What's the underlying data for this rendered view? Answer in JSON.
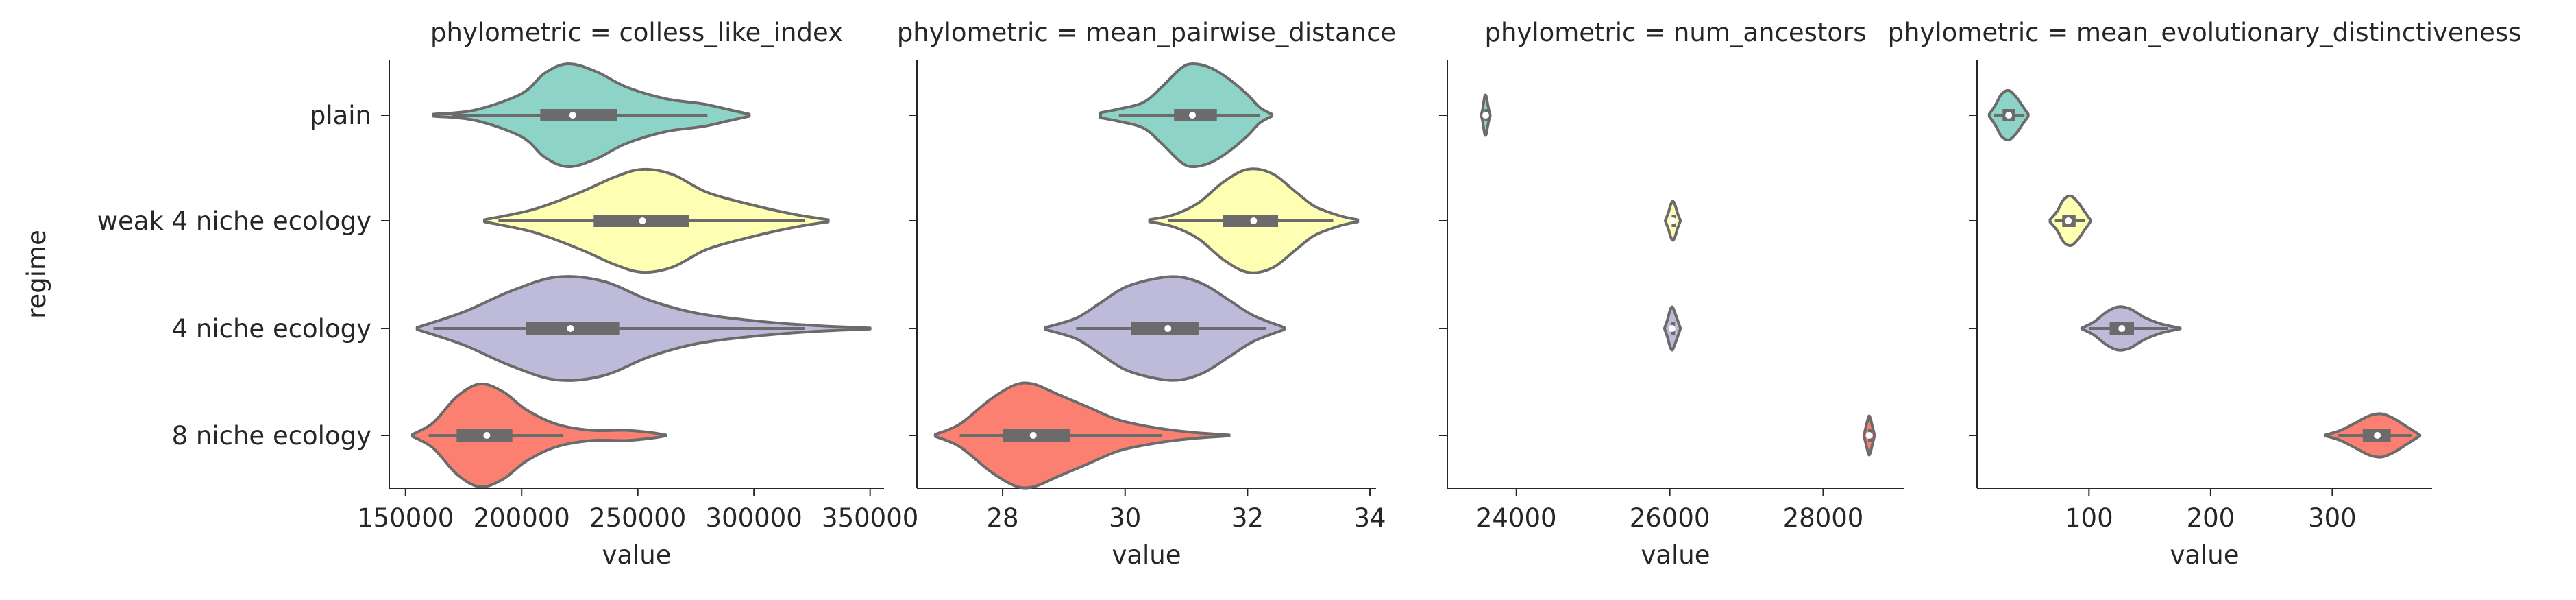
{
  "chart_data": {
    "type": "violin",
    "y_label": "regime",
    "categories": [
      "plain",
      "weak 4 niche ecology",
      "4 niche ecology",
      "8 niche ecology"
    ],
    "colors": [
      "#8dd3c7",
      "#ffffb3",
      "#bebada",
      "#fb8072"
    ],
    "outline_color": "#6b6b6b",
    "panels": [
      {
        "title": "phylometric = colless_like_index",
        "xlabel": "value",
        "xlim": [
          143000,
          356000
        ],
        "ticks": [
          150000,
          200000,
          250000,
          300000,
          350000
        ],
        "violins": [
          {
            "min": 162000,
            "max": 298000,
            "q1": 208000,
            "median": 222000,
            "q3": 241000,
            "wl": 170000,
            "wh": 280000,
            "profile": [
              [
                162000,
                0.02
              ],
              [
                180000,
                0.1
              ],
              [
                200000,
                0.42
              ],
              [
                210000,
                0.82
              ],
              [
                220000,
                1.0
              ],
              [
                232000,
                0.85
              ],
              [
                245000,
                0.55
              ],
              [
                262000,
                0.32
              ],
              [
                278000,
                0.22
              ],
              [
                290000,
                0.1
              ],
              [
                298000,
                0.02
              ]
            ]
          },
          {
            "min": 184000,
            "max": 332000,
            "q1": 231000,
            "median": 252000,
            "q3": 272000,
            "wl": 190000,
            "wh": 322000,
            "profile": [
              [
                184000,
                0.02
              ],
              [
                205000,
                0.22
              ],
              [
                225000,
                0.55
              ],
              [
                240000,
                0.85
              ],
              [
                252000,
                1.0
              ],
              [
                265000,
                0.9
              ],
              [
                280000,
                0.55
              ],
              [
                300000,
                0.3
              ],
              [
                318000,
                0.12
              ],
              [
                332000,
                0.02
              ]
            ]
          },
          {
            "min": 155000,
            "max": 350000,
            "q1": 202000,
            "median": 221000,
            "q3": 242000,
            "wl": 162000,
            "wh": 322000,
            "profile": [
              [
                155000,
                0.02
              ],
              [
                175000,
                0.32
              ],
              [
                195000,
                0.72
              ],
              [
                215000,
                1.0
              ],
              [
                235000,
                0.92
              ],
              [
                255000,
                0.55
              ],
              [
                275000,
                0.3
              ],
              [
                300000,
                0.15
              ],
              [
                325000,
                0.06
              ],
              [
                350000,
                0.01
              ]
            ]
          },
          {
            "min": 153000,
            "max": 262000,
            "q1": 172000,
            "median": 185000,
            "q3": 196000,
            "wl": 160000,
            "wh": 218000,
            "profile": [
              [
                153000,
                0.02
              ],
              [
                162000,
                0.25
              ],
              [
                172000,
                0.75
              ],
              [
                182000,
                1.0
              ],
              [
                192000,
                0.85
              ],
              [
                202000,
                0.5
              ],
              [
                215000,
                0.22
              ],
              [
                230000,
                0.1
              ],
              [
                245000,
                0.1
              ],
              [
                255000,
                0.06
              ],
              [
                262000,
                0.01
              ]
            ]
          }
        ]
      },
      {
        "title": "phylometric = mean_pairwise_distance",
        "xlabel": "value",
        "xlim": [
          26.6,
          34.1
        ],
        "ticks": [
          28,
          30,
          32,
          34
        ],
        "violins": [
          {
            "min": 29.6,
            "max": 32.4,
            "q1": 30.8,
            "median": 31.1,
            "q3": 31.5,
            "wl": 29.9,
            "wh": 32.2,
            "profile": [
              [
                29.6,
                0.05
              ],
              [
                29.9,
                0.12
              ],
              [
                30.3,
                0.25
              ],
              [
                30.6,
                0.55
              ],
              [
                30.9,
                0.9
              ],
              [
                31.1,
                1.0
              ],
              [
                31.4,
                0.92
              ],
              [
                31.7,
                0.7
              ],
              [
                32.0,
                0.4
              ],
              [
                32.2,
                0.15
              ],
              [
                32.4,
                0.02
              ]
            ]
          },
          {
            "min": 30.4,
            "max": 33.8,
            "q1": 31.6,
            "median": 32.1,
            "q3": 32.5,
            "wl": 30.7,
            "wh": 33.4,
            "profile": [
              [
                30.4,
                0.02
              ],
              [
                30.8,
                0.12
              ],
              [
                31.2,
                0.35
              ],
              [
                31.6,
                0.75
              ],
              [
                32.0,
                1.0
              ],
              [
                32.4,
                0.92
              ],
              [
                32.8,
                0.55
              ],
              [
                33.1,
                0.28
              ],
              [
                33.5,
                0.1
              ],
              [
                33.8,
                0.02
              ]
            ]
          },
          {
            "min": 28.7,
            "max": 32.6,
            "q1": 30.1,
            "median": 30.7,
            "q3": 31.2,
            "wl": 29.2,
            "wh": 32.3,
            "profile": [
              [
                28.7,
                0.02
              ],
              [
                29.2,
                0.2
              ],
              [
                29.6,
                0.5
              ],
              [
                30.0,
                0.8
              ],
              [
                30.5,
                0.97
              ],
              [
                30.9,
                1.0
              ],
              [
                31.3,
                0.85
              ],
              [
                31.7,
                0.55
              ],
              [
                32.1,
                0.25
              ],
              [
                32.6,
                0.02
              ]
            ]
          },
          {
            "min": 26.9,
            "max": 31.7,
            "q1": 28.0,
            "median": 28.5,
            "q3": 29.1,
            "wl": 27.3,
            "wh": 30.6,
            "profile": [
              [
                26.9,
                0.02
              ],
              [
                27.3,
                0.22
              ],
              [
                27.8,
                0.7
              ],
              [
                28.2,
                0.98
              ],
              [
                28.5,
                1.0
              ],
              [
                28.9,
                0.8
              ],
              [
                29.4,
                0.55
              ],
              [
                29.9,
                0.3
              ],
              [
                30.5,
                0.15
              ],
              [
                31.1,
                0.06
              ],
              [
                31.7,
                0.01
              ]
            ]
          }
        ]
      },
      {
        "title": "phylometric = num_ancestors",
        "xlabel": "value",
        "xlim": [
          23100,
          29050
        ],
        "ticks": [
          24000,
          26000,
          28000
        ],
        "violins": [
          {
            "min": 23560,
            "max": 23640,
            "q1": 23585,
            "median": 23600,
            "q3": 23615,
            "wl": 23565,
            "wh": 23635,
            "max_width_frac": 0.38,
            "profile": [
              [
                23540,
                0.0
              ],
              [
                23560,
                0.3
              ],
              [
                23575,
                0.7
              ],
              [
                23590,
                1.0
              ],
              [
                23605,
                1.0
              ],
              [
                23620,
                0.7
              ],
              [
                23640,
                0.3
              ],
              [
                23660,
                0.0
              ]
            ]
          },
          {
            "min": 26010,
            "max": 26070,
            "q1": 26025,
            "median": 26040,
            "q3": 26055,
            "wl": 26015,
            "wh": 26065,
            "max_width_frac": 0.38,
            "profile": [
              [
                25940,
                0.0
              ],
              [
                25980,
                0.4
              ],
              [
                26010,
                0.8
              ],
              [
                26040,
                1.0
              ],
              [
                26070,
                0.8
              ],
              [
                26100,
                0.4
              ],
              [
                26140,
                0.0
              ]
            ]
          },
          {
            "min": 25980,
            "max": 26100,
            "q1": 26015,
            "median": 26030,
            "q3": 26050,
            "wl": 25990,
            "wh": 26080,
            "max_width_frac": 0.42,
            "profile": [
              [
                25930,
                0.0
              ],
              [
                25970,
                0.4
              ],
              [
                26000,
                0.8
              ],
              [
                26030,
                1.0
              ],
              [
                26060,
                0.8
              ],
              [
                26100,
                0.4
              ],
              [
                26140,
                0.0
              ]
            ]
          },
          {
            "min": 28560,
            "max": 28640,
            "q1": 28585,
            "median": 28600,
            "q3": 28615,
            "wl": 28565,
            "wh": 28635,
            "max_width_frac": 0.38,
            "profile": [
              [
                28530,
                0.0
              ],
              [
                28555,
                0.4
              ],
              [
                28580,
                0.8
              ],
              [
                28600,
                1.0
              ],
              [
                28620,
                0.8
              ],
              [
                28645,
                0.4
              ],
              [
                28670,
                0.0
              ]
            ]
          }
        ]
      },
      {
        "title": "phylometric = mean_evolutionary_distinctiveness",
        "xlabel": "value",
        "xlim": [
          8,
          382
        ],
        "ticks": [
          100,
          200,
          300
        ],
        "violins": [
          {
            "min": 20,
            "max": 50,
            "q1": 29,
            "median": 34,
            "q3": 39,
            "wl": 22,
            "wh": 47,
            "max_width_frac": 0.48,
            "profile": [
              [
                18,
                0.05
              ],
              [
                23,
                0.4
              ],
              [
                28,
                0.85
              ],
              [
                34,
                1.0
              ],
              [
                40,
                0.75
              ],
              [
                45,
                0.4
              ],
              [
                50,
                0.05
              ]
            ]
          },
          {
            "min": 70,
            "max": 100,
            "q1": 78,
            "median": 83,
            "q3": 89,
            "wl": 72,
            "wh": 97,
            "max_width_frac": 0.48,
            "profile": [
              [
                68,
                0.05
              ],
              [
                74,
                0.4
              ],
              [
                79,
                0.85
              ],
              [
                85,
                1.0
              ],
              [
                91,
                0.75
              ],
              [
                96,
                0.4
              ],
              [
                101,
                0.05
              ]
            ]
          },
          {
            "min": 95,
            "max": 175,
            "q1": 117,
            "median": 127,
            "q3": 137,
            "wl": 100,
            "wh": 165,
            "max_width_frac": 0.42,
            "profile": [
              [
                94,
                0.02
              ],
              [
                104,
                0.3
              ],
              [
                114,
                0.75
              ],
              [
                124,
                1.0
              ],
              [
                134,
                0.9
              ],
              [
                146,
                0.5
              ],
              [
                160,
                0.2
              ],
              [
                175,
                0.02
              ]
            ]
          },
          {
            "min": 296,
            "max": 372,
            "q1": 325,
            "median": 337,
            "q3": 348,
            "wl": 305,
            "wh": 365,
            "max_width_frac": 0.42,
            "profile": [
              [
                294,
                0.02
              ],
              [
                306,
                0.22
              ],
              [
                318,
                0.55
              ],
              [
                330,
                0.9
              ],
              [
                340,
                1.0
              ],
              [
                350,
                0.8
              ],
              [
                360,
                0.45
              ],
              [
                372,
                0.02
              ]
            ]
          }
        ]
      }
    ]
  }
}
